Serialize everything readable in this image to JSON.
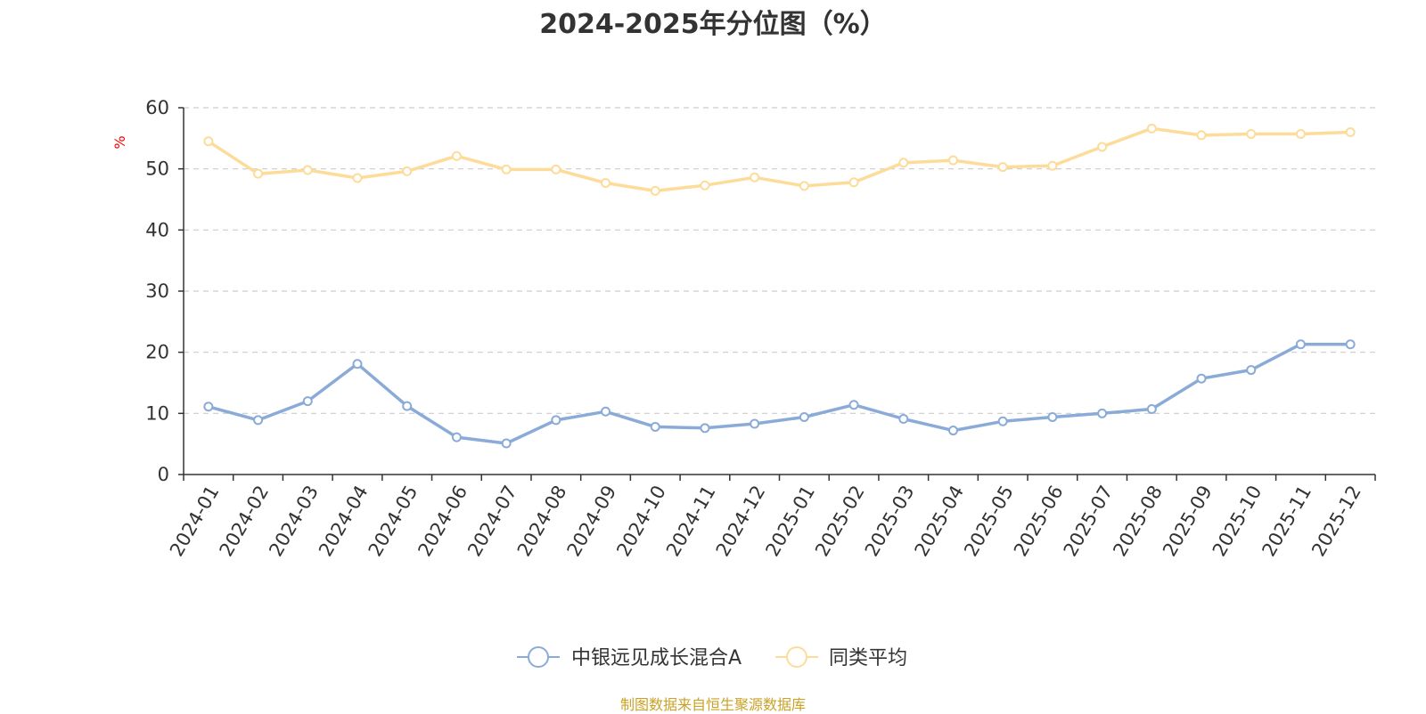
{
  "chart_data": {
    "type": "line",
    "title": "2024-2025年分位图（%）",
    "ylabel": "%",
    "xlabel": "",
    "ylim": [
      0,
      60
    ],
    "yticks": [
      0,
      10,
      20,
      30,
      40,
      50,
      60
    ],
    "grid": true,
    "legend_position": "bottom",
    "categories": [
      "2024-01",
      "2024-02",
      "2024-03",
      "2024-04",
      "2024-05",
      "2024-06",
      "2024-07",
      "2024-08",
      "2024-09",
      "2024-10",
      "2024-11",
      "2024-12",
      "2025-01",
      "2025-02",
      "2025-03",
      "2025-04",
      "2025-05",
      "2025-06",
      "2025-07",
      "2025-08",
      "2025-09",
      "2025-10",
      "2025-11",
      "2025-12"
    ],
    "series": [
      {
        "name": "中银远见成长混合A",
        "color": "#8aabd8",
        "values": [
          11.1,
          8.9,
          12.0,
          18.1,
          11.2,
          6.1,
          5.1,
          8.9,
          10.3,
          7.8,
          7.6,
          8.3,
          9.4,
          11.4,
          9.1,
          7.2,
          8.7,
          9.4,
          10.0,
          10.7,
          15.7,
          17.1,
          21.3,
          21.3
        ]
      },
      {
        "name": "同类平均",
        "color": "#fddc9a",
        "values": [
          54.5,
          49.2,
          49.8,
          48.5,
          49.6,
          52.1,
          49.9,
          49.9,
          47.7,
          46.4,
          47.3,
          48.6,
          47.2,
          47.8,
          51.0,
          51.4,
          50.3,
          50.5,
          53.6,
          56.6,
          55.5,
          55.7,
          55.7,
          56.0
        ]
      }
    ]
  },
  "source_text": "制图数据来自恒生聚源数据库"
}
